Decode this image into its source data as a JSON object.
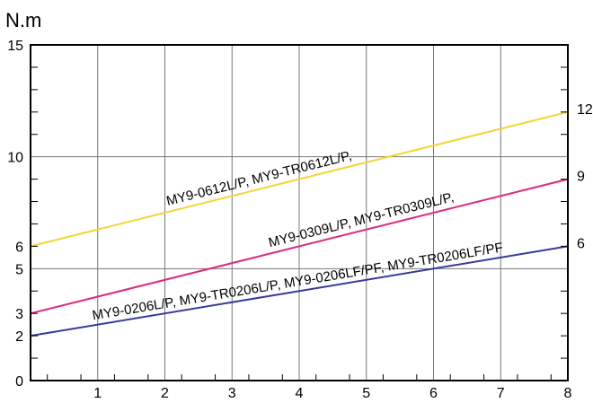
{
  "chart_data": {
    "type": "line",
    "ylabel": "N.m",
    "xlim": [
      0,
      8
    ],
    "ylim": [
      0,
      15
    ],
    "x_ticks": [
      "1",
      "2",
      "3",
      "4",
      "5",
      "6",
      "7",
      "8"
    ],
    "y_ticks": [
      "0",
      "2",
      "3",
      "5",
      "6",
      "10",
      "15"
    ],
    "grid": true,
    "series": [
      {
        "name": "MY9-0612L/P, MY9-TR0612L/P,",
        "x": [
          0,
          8
        ],
        "y": [
          6,
          12
        ],
        "end_label": "12",
        "color": "#f2d633"
      },
      {
        "name": "MY9-0309L/P, MY9-TR0309L/P,",
        "x": [
          0,
          8
        ],
        "y": [
          3,
          9
        ],
        "end_label": "9",
        "color": "#e0287a"
      },
      {
        "name": "MY9-0206L/P, MY9-TR0206L/P, MY9-0206LF/PF, MY9-TR0206LF/PF",
        "x": [
          0,
          8
        ],
        "y": [
          2,
          6
        ],
        "end_label": "6",
        "color": "#3a3a9a"
      }
    ]
  }
}
